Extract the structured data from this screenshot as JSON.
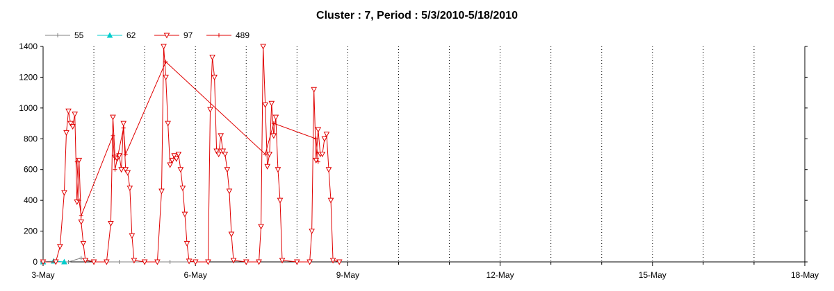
{
  "chart_data": {
    "type": "line",
    "title": "Cluster : 7, Period : 5/3/2010-5/18/2010",
    "xlabel": "",
    "ylabel": "",
    "x_axis": {
      "min_date": "2010-05-03",
      "max_date": "2010-05-18",
      "tick_labels": [
        "3-May",
        "6-May",
        "9-May",
        "12-May",
        "15-May",
        "18-May"
      ]
    },
    "ylim": [
      0,
      1400
    ],
    "yticks": [
      0,
      200,
      400,
      600,
      800,
      1000,
      1200,
      1400
    ],
    "grid": {
      "vertical": "dotted, daily",
      "horizontal": "off"
    },
    "legend": {
      "placement": "top-left"
    },
    "series": [
      {
        "name": "55",
        "color": "#808080",
        "marker": "plus",
        "points": [
          [
            "2010-05-03T00:00",
            0
          ],
          [
            "2010-05-03T12:00",
            0
          ],
          [
            "2010-05-03T18:00",
            25
          ],
          [
            "2010-05-04T00:00",
            0
          ],
          [
            "2010-05-04T12:00",
            0
          ],
          [
            "2010-05-05T00:00",
            0
          ],
          [
            "2010-05-05T12:00",
            0
          ],
          [
            "2010-05-06T00:00",
            0
          ]
        ]
      },
      {
        "name": "62",
        "color": "#00cccc",
        "marker": "triangle-up",
        "points": [
          [
            "2010-05-03T00:00",
            0
          ],
          [
            "2010-05-03T05:00",
            5
          ],
          [
            "2010-05-03T10:00",
            0
          ]
        ]
      },
      {
        "name": "97",
        "color": "#e00000",
        "marker": "triangle-down",
        "points": [
          [
            "2010-05-03T00:00",
            0
          ],
          [
            "2010-05-03T06:00",
            0
          ],
          [
            "2010-05-03T08:00",
            100
          ],
          [
            "2010-05-03T10:00",
            450
          ],
          [
            "2010-05-03T11:00",
            840
          ],
          [
            "2010-05-03T12:00",
            980
          ],
          [
            "2010-05-03T13:00",
            900
          ],
          [
            "2010-05-03T14:00",
            880
          ],
          [
            "2010-05-03T15:00",
            960
          ],
          [
            "2010-05-03T16:00",
            390
          ],
          [
            "2010-05-03T17:00",
            660
          ],
          [
            "2010-05-03T18:00",
            260
          ],
          [
            "2010-05-03T19:00",
            120
          ],
          [
            "2010-05-03T20:00",
            10
          ],
          [
            "2010-05-04T00:00",
            0
          ],
          [
            "2010-05-04T06:00",
            0
          ],
          [
            "2010-05-04T08:00",
            250
          ],
          [
            "2010-05-04T09:00",
            940
          ],
          [
            "2010-05-04T10:00",
            680
          ],
          [
            "2010-05-04T11:00",
            670
          ],
          [
            "2010-05-04T12:00",
            690
          ],
          [
            "2010-05-04T13:00",
            600
          ],
          [
            "2010-05-04T14:00",
            900
          ],
          [
            "2010-05-04T15:00",
            600
          ],
          [
            "2010-05-04T16:00",
            580
          ],
          [
            "2010-05-04T17:00",
            480
          ],
          [
            "2010-05-04T18:00",
            170
          ],
          [
            "2010-05-04T19:00",
            10
          ],
          [
            "2010-05-05T00:00",
            0
          ],
          [
            "2010-05-05T06:00",
            0
          ],
          [
            "2010-05-05T08:00",
            460
          ],
          [
            "2010-05-05T09:00",
            1400
          ],
          [
            "2010-05-05T10:00",
            1200
          ],
          [
            "2010-05-05T11:00",
            900
          ],
          [
            "2010-05-05T12:00",
            630
          ],
          [
            "2010-05-05T13:00",
            660
          ],
          [
            "2010-05-05T14:00",
            690
          ],
          [
            "2010-05-05T15:00",
            670
          ],
          [
            "2010-05-05T16:00",
            700
          ],
          [
            "2010-05-05T17:00",
            600
          ],
          [
            "2010-05-05T18:00",
            480
          ],
          [
            "2010-05-05T19:00",
            310
          ],
          [
            "2010-05-05T20:00",
            120
          ],
          [
            "2010-05-05T21:00",
            5
          ],
          [
            "2010-05-06T00:00",
            0
          ],
          [
            "2010-05-06T06:00",
            0
          ],
          [
            "2010-05-06T07:00",
            990
          ],
          [
            "2010-05-06T08:00",
            1330
          ],
          [
            "2010-05-06T09:00",
            1200
          ],
          [
            "2010-05-06T10:00",
            720
          ],
          [
            "2010-05-06T11:00",
            700
          ],
          [
            "2010-05-06T12:00",
            820
          ],
          [
            "2010-05-06T13:00",
            720
          ],
          [
            "2010-05-06T14:00",
            700
          ],
          [
            "2010-05-06T15:00",
            600
          ],
          [
            "2010-05-06T16:00",
            460
          ],
          [
            "2010-05-06T17:00",
            180
          ],
          [
            "2010-05-06T18:00",
            10
          ],
          [
            "2010-05-07T00:00",
            0
          ],
          [
            "2010-05-07T06:00",
            0
          ],
          [
            "2010-05-07T07:00",
            230
          ],
          [
            "2010-05-07T08:00",
            1400
          ],
          [
            "2010-05-07T09:00",
            1020
          ],
          [
            "2010-05-07T10:00",
            620
          ],
          [
            "2010-05-07T11:00",
            700
          ],
          [
            "2010-05-07T12:00",
            1030
          ],
          [
            "2010-05-07T13:00",
            820
          ],
          [
            "2010-05-07T14:00",
            940
          ],
          [
            "2010-05-07T15:00",
            600
          ],
          [
            "2010-05-07T16:00",
            400
          ],
          [
            "2010-05-07T17:00",
            10
          ],
          [
            "2010-05-08T00:00",
            0
          ],
          [
            "2010-05-08T06:00",
            0
          ],
          [
            "2010-05-08T07:00",
            200
          ],
          [
            "2010-05-08T08:00",
            1120
          ],
          [
            "2010-05-08T09:00",
            660
          ],
          [
            "2010-05-08T10:00",
            860
          ],
          [
            "2010-05-08T11:00",
            700
          ],
          [
            "2010-05-08T12:00",
            700
          ],
          [
            "2010-05-08T13:00",
            800
          ],
          [
            "2010-05-08T14:00",
            830
          ],
          [
            "2010-05-08T15:00",
            600
          ],
          [
            "2010-05-08T16:00",
            400
          ],
          [
            "2010-05-08T17:00",
            10
          ],
          [
            "2010-05-08T20:00",
            0
          ]
        ]
      },
      {
        "name": "489",
        "color": "#e00000",
        "marker": "plus",
        "points": [
          [
            "2010-05-03T16:00",
            650
          ],
          [
            "2010-05-03T17:00",
            400
          ],
          [
            "2010-05-03T18:00",
            300
          ],
          [
            "2010-05-04T09:00",
            820
          ],
          [
            "2010-05-04T10:00",
            600
          ],
          [
            "2010-05-04T14:00",
            870
          ],
          [
            "2010-05-04T15:00",
            700
          ],
          [
            "2010-05-05T10:00",
            1300
          ],
          [
            "2010-05-07T09:00",
            700
          ],
          [
            "2010-05-07T13:00",
            900
          ],
          [
            "2010-05-08T09:00",
            800
          ],
          [
            "2010-05-08T10:00",
            650
          ]
        ]
      }
    ]
  }
}
